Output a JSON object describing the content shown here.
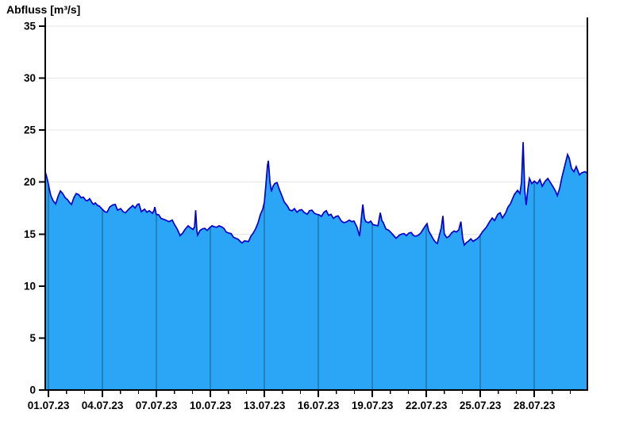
{
  "chart_data": {
    "type": "area",
    "title": "Abfluss [m³/s]",
    "xlabel": "",
    "ylabel": "Abfluss [m³/s]",
    "legend": "none",
    "x_unit": "days since 01.07.23 00:00",
    "x_range_days": [
      -0.18,
      29.95
    ],
    "ylim": [
      0,
      35
    ],
    "y_tick_step": 5,
    "y_ticks": [
      0,
      5,
      10,
      15,
      20,
      25,
      30,
      35
    ],
    "y_tick_labels": [
      "0",
      "5",
      "10",
      "15",
      "20",
      "25",
      "30",
      "35"
    ],
    "x_major_ticks": [
      {
        "day": 0,
        "label": "01.07.23"
      },
      {
        "day": 3,
        "label": "04.07.23"
      },
      {
        "day": 6,
        "label": "07.07.23"
      },
      {
        "day": 9,
        "label": "10.07.23"
      },
      {
        "day": 12,
        "label": "13.07.23"
      },
      {
        "day": 15,
        "label": "16.07.23"
      },
      {
        "day": 18,
        "label": "19.07.23"
      },
      {
        "day": 21,
        "label": "22.07.23"
      },
      {
        "day": 24,
        "label": "25.07.23"
      },
      {
        "day": 27,
        "label": "28.07.23"
      }
    ],
    "x_minor_tick_days": [
      0,
      1,
      2,
      3,
      4,
      5,
      6,
      7,
      8,
      9,
      10,
      11,
      12,
      13,
      14,
      15,
      16,
      17,
      18,
      19,
      20,
      21,
      22,
      23,
      24,
      25,
      26,
      27,
      28,
      29
    ],
    "grid": {
      "horizontal": "at every y major tick, light gray, hidden behind area fill",
      "vertical": "at every labeled x tick, dark, visible only inside area fill"
    },
    "points": [
      [
        -0.18,
        20.5
      ],
      [
        -0.13,
        20.7
      ],
      [
        -0.04,
        20.1
      ],
      [
        0.04,
        19.4
      ],
      [
        0.13,
        18.7
      ],
      [
        0.26,
        18.2
      ],
      [
        0.4,
        17.9
      ],
      [
        0.53,
        18.6
      ],
      [
        0.66,
        19.15
      ],
      [
        0.79,
        18.9
      ],
      [
        0.93,
        18.5
      ],
      [
        1.06,
        18.3
      ],
      [
        1.19,
        18.0
      ],
      [
        1.28,
        17.85
      ],
      [
        1.41,
        18.5
      ],
      [
        1.54,
        18.9
      ],
      [
        1.68,
        18.8
      ],
      [
        1.81,
        18.5
      ],
      [
        1.94,
        18.55
      ],
      [
        2.07,
        18.25
      ],
      [
        2.16,
        18.2
      ],
      [
        2.29,
        18.4
      ],
      [
        2.43,
        18.0
      ],
      [
        2.51,
        17.85
      ],
      [
        2.6,
        18.0
      ],
      [
        2.73,
        17.75
      ],
      [
        2.82,
        17.7
      ],
      [
        2.96,
        17.45
      ],
      [
        3.13,
        17.15
      ],
      [
        3.26,
        17.1
      ],
      [
        3.4,
        17.6
      ],
      [
        3.57,
        17.8
      ],
      [
        3.71,
        17.85
      ],
      [
        3.84,
        17.3
      ],
      [
        4.01,
        17.45
      ],
      [
        4.15,
        17.15
      ],
      [
        4.28,
        17.05
      ],
      [
        4.46,
        17.4
      ],
      [
        4.59,
        17.6
      ],
      [
        4.68,
        17.75
      ],
      [
        4.81,
        17.5
      ],
      [
        4.94,
        17.85
      ],
      [
        5.03,
        17.9
      ],
      [
        5.16,
        17.15
      ],
      [
        5.34,
        17.4
      ],
      [
        5.47,
        17.1
      ],
      [
        5.6,
        17.25
      ],
      [
        5.78,
        17.0
      ],
      [
        5.87,
        17.3
      ],
      [
        5.91,
        17.6
      ],
      [
        5.99,
        16.9
      ],
      [
        6.13,
        16.85
      ],
      [
        6.26,
        16.5
      ],
      [
        6.44,
        16.4
      ],
      [
        6.57,
        16.3
      ],
      [
        6.7,
        16.2
      ],
      [
        6.88,
        16.35
      ],
      [
        7.01,
        15.9
      ],
      [
        7.15,
        15.5
      ],
      [
        7.32,
        14.85
      ],
      [
        7.46,
        15.1
      ],
      [
        7.59,
        15.45
      ],
      [
        7.76,
        15.8
      ],
      [
        7.9,
        15.6
      ],
      [
        8.03,
        15.45
      ],
      [
        8.12,
        15.7
      ],
      [
        8.18,
        17.3
      ],
      [
        8.25,
        15.3
      ],
      [
        8.29,
        14.9
      ],
      [
        8.42,
        15.35
      ],
      [
        8.56,
        15.5
      ],
      [
        8.69,
        15.55
      ],
      [
        8.82,
        15.35
      ],
      [
        8.95,
        15.6
      ],
      [
        9.09,
        15.8
      ],
      [
        9.22,
        15.7
      ],
      [
        9.35,
        15.65
      ],
      [
        9.48,
        15.8
      ],
      [
        9.62,
        15.7
      ],
      [
        9.75,
        15.55
      ],
      [
        9.88,
        15.2
      ],
      [
        10.01,
        15.1
      ],
      [
        10.15,
        15.05
      ],
      [
        10.28,
        14.7
      ],
      [
        10.41,
        14.6
      ],
      [
        10.54,
        14.5
      ],
      [
        10.68,
        14.25
      ],
      [
        10.76,
        14.15
      ],
      [
        10.9,
        14.35
      ],
      [
        11.03,
        14.3
      ],
      [
        11.12,
        14.3
      ],
      [
        11.25,
        14.8
      ],
      [
        11.38,
        15.1
      ],
      [
        11.51,
        15.5
      ],
      [
        11.65,
        16.1
      ],
      [
        11.78,
        16.9
      ],
      [
        11.91,
        17.4
      ],
      [
        12.0,
        18.1
      ],
      [
        12.09,
        19.9
      ],
      [
        12.17,
        21.6
      ],
      [
        12.22,
        22.05
      ],
      [
        12.31,
        20.0
      ],
      [
        12.39,
        19.1
      ],
      [
        12.48,
        19.6
      ],
      [
        12.57,
        19.85
      ],
      [
        12.7,
        19.95
      ],
      [
        12.83,
        19.3
      ],
      [
        12.97,
        18.7
      ],
      [
        13.1,
        18.1
      ],
      [
        13.28,
        17.7
      ],
      [
        13.41,
        17.3
      ],
      [
        13.54,
        17.25
      ],
      [
        13.67,
        17.45
      ],
      [
        13.81,
        17.1
      ],
      [
        13.94,
        17.3
      ],
      [
        14.07,
        17.35
      ],
      [
        14.2,
        17.1
      ],
      [
        14.38,
        16.9
      ],
      [
        14.51,
        17.25
      ],
      [
        14.64,
        17.3
      ],
      [
        14.78,
        17.0
      ],
      [
        14.91,
        16.9
      ],
      [
        15.04,
        16.85
      ],
      [
        15.17,
        16.7
      ],
      [
        15.31,
        17.1
      ],
      [
        15.44,
        17.25
      ],
      [
        15.57,
        16.8
      ],
      [
        15.7,
        16.9
      ],
      [
        15.84,
        16.5
      ],
      [
        15.97,
        16.7
      ],
      [
        16.1,
        16.75
      ],
      [
        16.28,
        16.25
      ],
      [
        16.41,
        16.1
      ],
      [
        16.54,
        16.15
      ],
      [
        16.72,
        16.35
      ],
      [
        16.85,
        16.2
      ],
      [
        16.98,
        16.25
      ],
      [
        17.15,
        15.65
      ],
      [
        17.29,
        14.8
      ],
      [
        17.38,
        16.4
      ],
      [
        17.47,
        17.85
      ],
      [
        17.56,
        16.5
      ],
      [
        17.64,
        16.2
      ],
      [
        17.78,
        16.1
      ],
      [
        17.91,
        16.25
      ],
      [
        18.04,
        15.9
      ],
      [
        18.17,
        15.85
      ],
      [
        18.31,
        15.8
      ],
      [
        18.44,
        17.05
      ],
      [
        18.53,
        16.3
      ],
      [
        18.61,
        16.1
      ],
      [
        18.75,
        15.5
      ],
      [
        18.92,
        15.35
      ],
      [
        19.06,
        15.1
      ],
      [
        19.19,
        14.85
      ],
      [
        19.32,
        14.6
      ],
      [
        19.5,
        14.9
      ],
      [
        19.63,
        15.0
      ],
      [
        19.76,
        15.05
      ],
      [
        19.89,
        14.85
      ],
      [
        20.03,
        15.1
      ],
      [
        20.16,
        15.15
      ],
      [
        20.29,
        14.85
      ],
      [
        20.42,
        14.8
      ],
      [
        20.56,
        14.9
      ],
      [
        20.69,
        15.1
      ],
      [
        20.82,
        15.45
      ],
      [
        20.95,
        15.8
      ],
      [
        21.04,
        16.0
      ],
      [
        21.13,
        15.3
      ],
      [
        21.26,
        14.9
      ],
      [
        21.39,
        14.5
      ],
      [
        21.52,
        14.2
      ],
      [
        21.61,
        14.1
      ],
      [
        21.74,
        15.0
      ],
      [
        21.83,
        15.6
      ],
      [
        21.92,
        16.75
      ],
      [
        22.0,
        15.0
      ],
      [
        22.14,
        14.65
      ],
      [
        22.27,
        14.8
      ],
      [
        22.4,
        15.1
      ],
      [
        22.54,
        15.3
      ],
      [
        22.67,
        15.2
      ],
      [
        22.8,
        15.4
      ],
      [
        22.92,
        16.2
      ],
      [
        23.02,
        14.6
      ],
      [
        23.11,
        13.95
      ],
      [
        23.24,
        14.2
      ],
      [
        23.33,
        14.3
      ],
      [
        23.47,
        14.55
      ],
      [
        23.6,
        14.3
      ],
      [
        23.73,
        14.45
      ],
      [
        23.82,
        14.55
      ],
      [
        23.91,
        14.7
      ],
      [
        24.0,
        14.9
      ],
      [
        24.13,
        15.25
      ],
      [
        24.26,
        15.5
      ],
      [
        24.35,
        15.7
      ],
      [
        24.52,
        16.2
      ],
      [
        24.66,
        16.55
      ],
      [
        24.79,
        16.3
      ],
      [
        24.97,
        16.9
      ],
      [
        25.1,
        17.05
      ],
      [
        25.23,
        16.55
      ],
      [
        25.41,
        17.05
      ],
      [
        25.54,
        17.6
      ],
      [
        25.67,
        17.9
      ],
      [
        25.89,
        18.8
      ],
      [
        26.07,
        19.2
      ],
      [
        26.2,
        18.9
      ],
      [
        26.29,
        20.0
      ],
      [
        26.38,
        23.85
      ],
      [
        26.47,
        19.2
      ],
      [
        26.55,
        17.8
      ],
      [
        26.64,
        19.3
      ],
      [
        26.73,
        20.35
      ],
      [
        26.86,
        19.85
      ],
      [
        27.0,
        20.1
      ],
      [
        27.17,
        19.85
      ],
      [
        27.31,
        20.25
      ],
      [
        27.44,
        19.6
      ],
      [
        27.61,
        20.1
      ],
      [
        27.75,
        20.35
      ],
      [
        27.88,
        20.0
      ],
      [
        28.06,
        19.5
      ],
      [
        28.19,
        19.1
      ],
      [
        28.28,
        18.7
      ],
      [
        28.41,
        19.4
      ],
      [
        28.54,
        20.5
      ],
      [
        28.72,
        21.75
      ],
      [
        28.85,
        22.65
      ],
      [
        28.94,
        22.3
      ],
      [
        29.07,
        21.3
      ],
      [
        29.2,
        21.0
      ],
      [
        29.33,
        21.5
      ],
      [
        29.51,
        20.7
      ],
      [
        29.64,
        20.9
      ],
      [
        29.82,
        21.0
      ],
      [
        29.95,
        20.85
      ]
    ]
  },
  "style": {
    "area_fill": "#2ba6f7",
    "line_color": "#0000cc",
    "h_grid_color": "#e4e4e4",
    "v_separator_color": "rgba(0,0,0,0.45)",
    "axis_color": "#000000",
    "text_color": "#000000",
    "background": "#ffffff"
  }
}
